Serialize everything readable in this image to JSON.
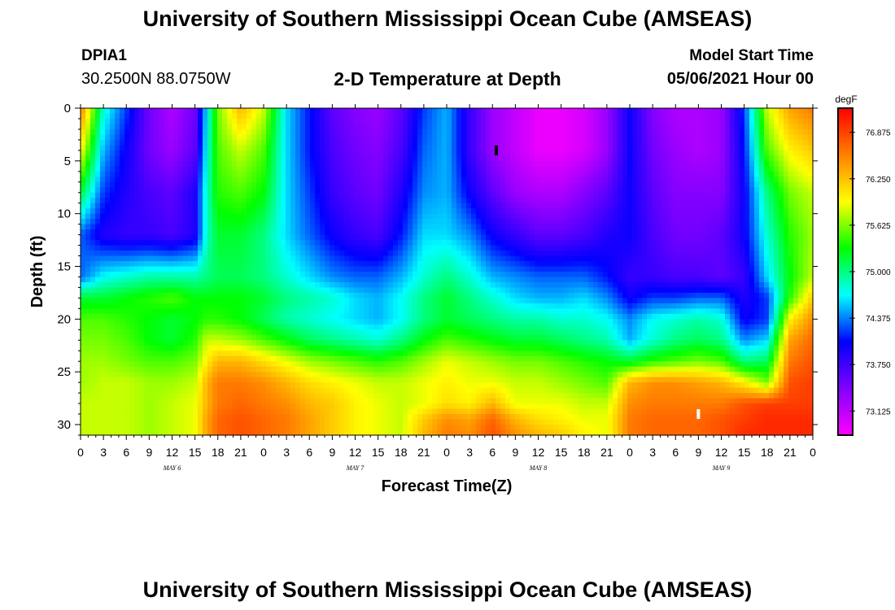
{
  "header": {
    "title": "University of Southern Mississippi Ocean Cube (AMSEAS)",
    "station_id": "DPIA1",
    "coordinates": "30.2500N  88.0750W",
    "plot_title": "2-D Temperature at Depth",
    "model_start_label": "Model Start Time",
    "model_start_value": "05/06/2021 Hour 00"
  },
  "footer": {
    "title": "University of Southern Mississippi Ocean Cube (AMSEAS)"
  },
  "chart_data": {
    "type": "heatmap",
    "title": "2-D Temperature at Depth",
    "xlabel": "Forecast Time(Z)",
    "ylabel": "Depth (ft)",
    "x_unit": "hours from model start",
    "xlim": [
      0,
      96
    ],
    "ylim": [
      0,
      31
    ],
    "y_inverted": true,
    "x_tick_labels": [
      "0",
      "3",
      "6",
      "9",
      "12",
      "15",
      "18",
      "21",
      "0",
      "3",
      "6",
      "9",
      "12",
      "15",
      "18",
      "21",
      "0",
      "3",
      "6",
      "9",
      "12",
      "15",
      "18",
      "21",
      "0",
      "3",
      "6",
      "9",
      "12",
      "15",
      "18",
      "21",
      "0"
    ],
    "y_ticks": [
      0,
      5,
      10,
      15,
      20,
      25,
      30
    ],
    "day_labels": [
      {
        "hour": 12,
        "label": "MAY  6"
      },
      {
        "hour": 36,
        "label": "MAY  7"
      },
      {
        "hour": 60,
        "label": "MAY  8"
      },
      {
        "hour": 84,
        "label": "MAY  9"
      }
    ],
    "colorbar": {
      "unit": "degF",
      "min": 72.8,
      "max": 77.2,
      "tick_labels": [
        "76.875",
        "76.250",
        "75.625",
        "75.000",
        "74.375",
        "73.750",
        "73.125"
      ],
      "colors": [
        "#ff00ff",
        "#8000ff",
        "#0000ff",
        "#00ffff",
        "#00ff00",
        "#ffff00",
        "#ff8000",
        "#ff0000"
      ]
    },
    "depths_ft": [
      0,
      4,
      8,
      12,
      16,
      18,
      20,
      22,
      24,
      26,
      28,
      29.5,
      31
    ],
    "times_hr": [
      0,
      3,
      6,
      9,
      12,
      15,
      16.5,
      18,
      21,
      24,
      27,
      30,
      33,
      36,
      39,
      42,
      45,
      48,
      51,
      54,
      57,
      60,
      63,
      66,
      69,
      72,
      75,
      78,
      81,
      84,
      87,
      90,
      93,
      96
    ],
    "temperature_degF": [
      [
        76.6,
        74.8,
        74.2,
        73.5,
        73.2,
        73.5,
        74.6,
        75.6,
        76.3,
        75.8,
        74.6,
        74.1,
        73.6,
        73.4,
        73.3,
        73.6,
        74.2,
        74.5,
        73.8,
        73.3,
        73.1,
        72.9,
        72.9,
        73.0,
        73.3,
        74.0,
        73.4,
        73.2,
        73.2,
        73.3,
        74.2,
        75.8,
        76.4,
        76.6
      ],
      [
        76.0,
        74.5,
        74.0,
        73.5,
        73.3,
        73.6,
        74.7,
        75.5,
        75.8,
        75.5,
        74.6,
        74.1,
        73.7,
        73.5,
        73.4,
        73.7,
        74.3,
        74.5,
        73.8,
        73.3,
        73.1,
        72.9,
        72.9,
        73.0,
        73.3,
        74.0,
        73.5,
        73.3,
        73.2,
        73.3,
        74.1,
        75.5,
        76.0,
        76.2
      ],
      [
        75.2,
        74.2,
        73.9,
        73.7,
        73.6,
        73.9,
        74.8,
        75.4,
        75.5,
        75.3,
        74.6,
        74.2,
        73.8,
        73.6,
        73.5,
        73.9,
        74.4,
        74.5,
        74.0,
        73.6,
        73.3,
        73.2,
        73.2,
        73.4,
        73.6,
        74.0,
        73.6,
        73.4,
        73.4,
        73.4,
        74.0,
        75.0,
        75.6,
        75.8
      ],
      [
        74.3,
        73.9,
        73.8,
        73.8,
        73.7,
        73.9,
        74.8,
        75.2,
        75.2,
        75.0,
        74.6,
        74.3,
        74.0,
        73.8,
        73.7,
        74.1,
        74.6,
        74.6,
        74.4,
        74.0,
        73.8,
        73.6,
        73.6,
        73.7,
        73.9,
        74.0,
        73.7,
        73.5,
        73.5,
        73.6,
        74.0,
        74.8,
        75.4,
        75.7
      ],
      [
        74.3,
        74.7,
        74.8,
        74.9,
        74.9,
        74.9,
        75.0,
        75.1,
        75.1,
        75.0,
        74.8,
        74.6,
        74.4,
        74.3,
        74.3,
        74.5,
        74.8,
        75.0,
        74.8,
        74.5,
        74.4,
        74.3,
        74.3,
        74.3,
        74.1,
        73.8,
        73.8,
        73.7,
        73.7,
        73.6,
        73.8,
        74.6,
        75.3,
        75.8
      ],
      [
        75.2,
        75.2,
        75.3,
        75.4,
        75.5,
        75.3,
        75.3,
        75.3,
        75.3,
        75.2,
        75.0,
        74.9,
        74.8,
        74.6,
        74.5,
        74.7,
        75.0,
        75.2,
        75.0,
        74.8,
        74.6,
        74.5,
        74.5,
        74.6,
        74.4,
        74.0,
        74.2,
        74.2,
        74.3,
        74.3,
        73.9,
        74.2,
        75.4,
        76.2
      ],
      [
        75.5,
        75.5,
        75.4,
        75.3,
        75.2,
        75.3,
        75.4,
        75.4,
        75.3,
        75.1,
        74.9,
        74.8,
        74.7,
        74.6,
        74.5,
        74.7,
        75.0,
        75.2,
        75.1,
        75.0,
        74.9,
        74.9,
        74.8,
        74.8,
        74.7,
        74.4,
        74.7,
        74.8,
        74.9,
        74.8,
        74.0,
        74.2,
        76.0,
        76.5
      ],
      [
        75.6,
        75.6,
        75.5,
        75.3,
        75.2,
        75.4,
        75.8,
        75.8,
        75.7,
        75.5,
        75.3,
        75.1,
        75.0,
        74.9,
        74.8,
        75.0,
        75.3,
        75.5,
        75.4,
        75.3,
        75.2,
        75.2,
        75.1,
        75.0,
        74.9,
        74.5,
        74.8,
        75.0,
        75.1,
        75.0,
        74.4,
        74.6,
        76.4,
        76.7
      ],
      [
        75.7,
        75.7,
        75.6,
        75.5,
        75.5,
        75.6,
        76.0,
        76.3,
        76.3,
        76.1,
        75.9,
        75.7,
        75.6,
        75.5,
        75.4,
        75.5,
        75.7,
        75.9,
        75.8,
        75.7,
        75.6,
        75.6,
        75.5,
        75.4,
        75.3,
        75.2,
        75.4,
        75.5,
        75.6,
        75.5,
        75.0,
        75.1,
        76.6,
        76.8
      ],
      [
        75.7,
        75.8,
        75.8,
        75.7,
        75.7,
        75.8,
        76.3,
        76.6,
        76.6,
        76.5,
        76.3,
        76.1,
        76.0,
        75.9,
        75.8,
        75.8,
        75.9,
        76.0,
        75.9,
        75.9,
        75.8,
        75.8,
        75.7,
        75.6,
        75.5,
        76.3,
        76.5,
        76.5,
        76.4,
        76.3,
        76.0,
        75.6,
        76.8,
        76.9
      ],
      [
        75.8,
        75.8,
        75.8,
        75.7,
        75.8,
        75.9,
        76.3,
        76.6,
        76.7,
        76.6,
        76.5,
        76.3,
        76.2,
        76.0,
        75.9,
        75.8,
        75.9,
        76.1,
        76.0,
        76.3,
        75.9,
        75.9,
        75.9,
        75.8,
        75.8,
        76.5,
        76.6,
        76.6,
        76.6,
        76.6,
        76.8,
        76.9,
        76.9,
        76.9
      ],
      [
        75.8,
        75.8,
        75.8,
        75.7,
        75.8,
        75.9,
        76.4,
        76.7,
        76.8,
        76.7,
        76.6,
        76.4,
        76.2,
        76.0,
        75.9,
        75.8,
        76.2,
        76.5,
        76.4,
        76.7,
        76.3,
        76.1,
        76.0,
        75.9,
        75.9,
        76.6,
        76.7,
        76.7,
        76.7,
        76.8,
        76.9,
        77.0,
        77.0,
        77.0
      ],
      [
        75.8,
        75.8,
        75.8,
        75.7,
        75.8,
        75.9,
        76.4,
        76.7,
        76.8,
        76.7,
        76.6,
        76.4,
        76.2,
        76.0,
        75.9,
        75.8,
        76.3,
        76.6,
        76.5,
        76.8,
        76.5,
        76.3,
        76.2,
        76.0,
        75.9,
        76.6,
        76.7,
        76.7,
        76.7,
        76.8,
        77.0,
        77.0,
        77.0,
        77.0
      ]
    ],
    "markers": [
      {
        "hour": 54.5,
        "depth_ft": 4,
        "color": "black"
      },
      {
        "hour": 81,
        "depth_ft": 29,
        "color": "white"
      }
    ]
  }
}
